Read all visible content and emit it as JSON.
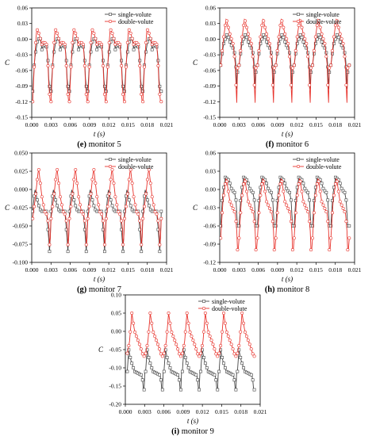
{
  "chart_data": [
    {
      "type": "line",
      "caption_letter": "(e)",
      "caption_text": "monitor 5",
      "ylabel": "C",
      "xlabel": "t (s)",
      "xlim": [
        0.0,
        0.021
      ],
      "ylim": [
        -0.15,
        0.06
      ],
      "xticks": [
        "0.000",
        "0.003",
        "0.006",
        "0.009",
        "0.012",
        "0.015",
        "0.018",
        "0.021"
      ],
      "yticks": [
        "0.06",
        "0.03",
        "0.00",
        "-0.03",
        "-0.06",
        "-0.09",
        "-0.12",
        "-0.15"
      ],
      "legend_position": "top-right",
      "period": 0.00286,
      "t_start": 0.00015,
      "t_end": 0.0202,
      "series": [
        {
          "name": "single-volute",
          "color": "#444444",
          "marker": "square",
          "shape": {
            "t": [
              0.0,
              0.1,
              0.25,
              0.4,
              0.5,
              0.62,
              0.75,
              0.82,
              0.88,
              0.95,
              1.0
            ],
            "v": [
              -0.1,
              -0.04,
              -0.005,
              0.005,
              -0.02,
              -0.01,
              -0.015,
              -0.03,
              -0.08,
              -0.1,
              -0.1
            ]
          }
        },
        {
          "name": "double-volute",
          "color": "#e8332c",
          "marker": "circle",
          "shape": {
            "t": [
              0.0,
              0.1,
              0.22,
              0.35,
              0.5,
              0.62,
              0.75,
              0.82,
              0.88,
              0.95,
              1.0
            ],
            "v": [
              -0.12,
              -0.04,
              0.02,
              0.01,
              -0.01,
              -0.005,
              -0.01,
              -0.04,
              -0.09,
              -0.12,
              -0.12
            ]
          }
        }
      ]
    },
    {
      "type": "line",
      "caption_letter": "(f)",
      "caption_text": "monitor 6",
      "ylabel": "C",
      "xlabel": "t (s)",
      "xlim": [
        0.0,
        0.021
      ],
      "ylim": [
        -0.15,
        0.06
      ],
      "xticks": [
        "0.000",
        "0.003",
        "0.006",
        "0.009",
        "0.012",
        "0.015",
        "0.018",
        "0.021"
      ],
      "yticks": [
        "0.06",
        "0.03",
        "0.00",
        "-0.03",
        "-0.06",
        "-0.09",
        "-0.12",
        "-0.15"
      ],
      "legend_position": "top-right",
      "period": 0.00286,
      "t_start": 0.00015,
      "t_end": 0.0202,
      "series": [
        {
          "name": "single-volute",
          "color": "#444444",
          "marker": "square",
          "shape": {
            "t": [
              0.0,
              0.15,
              0.35,
              0.55,
              0.72,
              0.82,
              0.88,
              0.93,
              1.0
            ],
            "v": [
              -0.05,
              -0.01,
              0.01,
              -0.01,
              -0.02,
              -0.04,
              -0.1,
              -0.05,
              -0.05
            ]
          }
        },
        {
          "name": "double-volute",
          "color": "#e8332c",
          "marker": "circle",
          "shape": {
            "t": [
              0.0,
              0.15,
              0.3,
              0.5,
              0.68,
              0.8,
              0.87,
              0.92,
              1.0
            ],
            "v": [
              -0.05,
              0.0,
              0.04,
              0.01,
              -0.01,
              -0.05,
              -0.13,
              -0.05,
              -0.05
            ]
          }
        }
      ]
    },
    {
      "type": "line",
      "caption_letter": "(g)",
      "caption_text": "monitor 7",
      "ylabel": "C",
      "xlabel": "t (s)",
      "xlim": [
        0.0,
        0.021
      ],
      "ylim": [
        -0.1,
        0.05
      ],
      "xticks": [
        "0.000",
        "0.003",
        "0.006",
        "0.009",
        "0.012",
        "0.015",
        "0.018",
        "0.021"
      ],
      "yticks": [
        "0.050",
        "0.025",
        "0.000",
        "-0.025",
        "-0.050",
        "-0.075",
        "-0.100"
      ],
      "legend_position": "top-right",
      "period": 0.00286,
      "t_start": 0.00015,
      "t_end": 0.0202,
      "series": [
        {
          "name": "single-volute",
          "color": "#444444",
          "marker": "square",
          "shape": {
            "t": [
              0.0,
              0.12,
              0.3,
              0.45,
              0.6,
              0.75,
              0.85,
              0.93,
              1.0
            ],
            "v": [
              -0.03,
              0.0,
              -0.02,
              -0.03,
              -0.03,
              -0.03,
              -0.06,
              -0.09,
              -0.03
            ]
          }
        },
        {
          "name": "double-volute",
          "color": "#e8332c",
          "marker": "circle",
          "shape": {
            "t": [
              0.0,
              0.15,
              0.32,
              0.5,
              0.65,
              0.78,
              0.88,
              0.93,
              1.0
            ],
            "v": [
              -0.04,
              -0.01,
              0.03,
              -0.01,
              -0.03,
              -0.035,
              -0.05,
              -0.085,
              -0.04
            ]
          }
        }
      ]
    },
    {
      "type": "line",
      "caption_letter": "(h)",
      "caption_text": "monitor 8",
      "ylabel": "C",
      "xlabel": "t (s)",
      "xlim": [
        0.0,
        0.021
      ],
      "ylim": [
        -0.12,
        0.06
      ],
      "xticks": [
        "0.000",
        "0.003",
        "0.006",
        "0.009",
        "0.012",
        "0.015",
        "0.018",
        "0.021"
      ],
      "yticks": [
        "0.06",
        "0.03",
        "0.00",
        "-0.03",
        "-0.06",
        "-0.09",
        "-0.12"
      ],
      "legend_position": "top-right",
      "period": 0.00286,
      "t_start": 0.00015,
      "t_end": 0.0202,
      "series": [
        {
          "name": "single-volute",
          "color": "#444444",
          "marker": "square",
          "shape": {
            "t": [
              0.0,
              0.1,
              0.25,
              0.45,
              0.6,
              0.75,
              0.85,
              0.9,
              0.95,
              1.0
            ],
            "v": [
              -0.06,
              -0.01,
              0.02,
              0.015,
              0.0,
              -0.005,
              -0.02,
              -0.06,
              -0.06,
              -0.06
            ]
          }
        },
        {
          "name": "double-volute",
          "color": "#e8332c",
          "marker": "circle",
          "shape": {
            "t": [
              0.0,
              0.12,
              0.3,
              0.5,
              0.65,
              0.8,
              0.88,
              0.93,
              1.0
            ],
            "v": [
              -0.08,
              -0.02,
              0.02,
              -0.02,
              -0.03,
              -0.04,
              -0.07,
              -0.11,
              -0.08
            ]
          }
        }
      ]
    },
    {
      "type": "line",
      "caption_letter": "(i)",
      "caption_text": "monitor 9",
      "ylabel": "C",
      "xlabel": "t (s)",
      "xlim": [
        0.0,
        0.021
      ],
      "ylim": [
        -0.2,
        0.1
      ],
      "xticks": [
        "0.000",
        "0.003",
        "0.006",
        "0.009",
        "0.012",
        "0.015",
        "0.018",
        "0.021"
      ],
      "yticks": [
        "0.10",
        "0.05",
        "0.00",
        "-0.05",
        "-0.10",
        "-0.15",
        "-0.20"
      ],
      "legend_position": "top-right",
      "period": 0.00286,
      "t_start": 0.0003,
      "t_end": 0.0202,
      "series": [
        {
          "name": "single-volute",
          "color": "#444444",
          "marker": "square",
          "shape": {
            "t": [
              0.0,
              0.08,
              0.2,
              0.4,
              0.6,
              0.78,
              0.86,
              0.9,
              0.95,
              1.0
            ],
            "v": [
              -0.11,
              -0.05,
              -0.08,
              -0.11,
              -0.115,
              -0.12,
              -0.14,
              -0.185,
              -0.11,
              -0.11
            ]
          }
        },
        {
          "name": "double-volute",
          "color": "#e8332c",
          "marker": "circle",
          "shape": {
            "t": [
              0.0,
              0.12,
              0.25,
              0.4,
              0.55,
              0.7,
              0.82,
              0.9,
              1.0
            ],
            "v": [
              -0.06,
              -0.03,
              0.05,
              0.0,
              -0.02,
              -0.04,
              -0.06,
              -0.07,
              -0.06
            ]
          }
        }
      ]
    }
  ]
}
